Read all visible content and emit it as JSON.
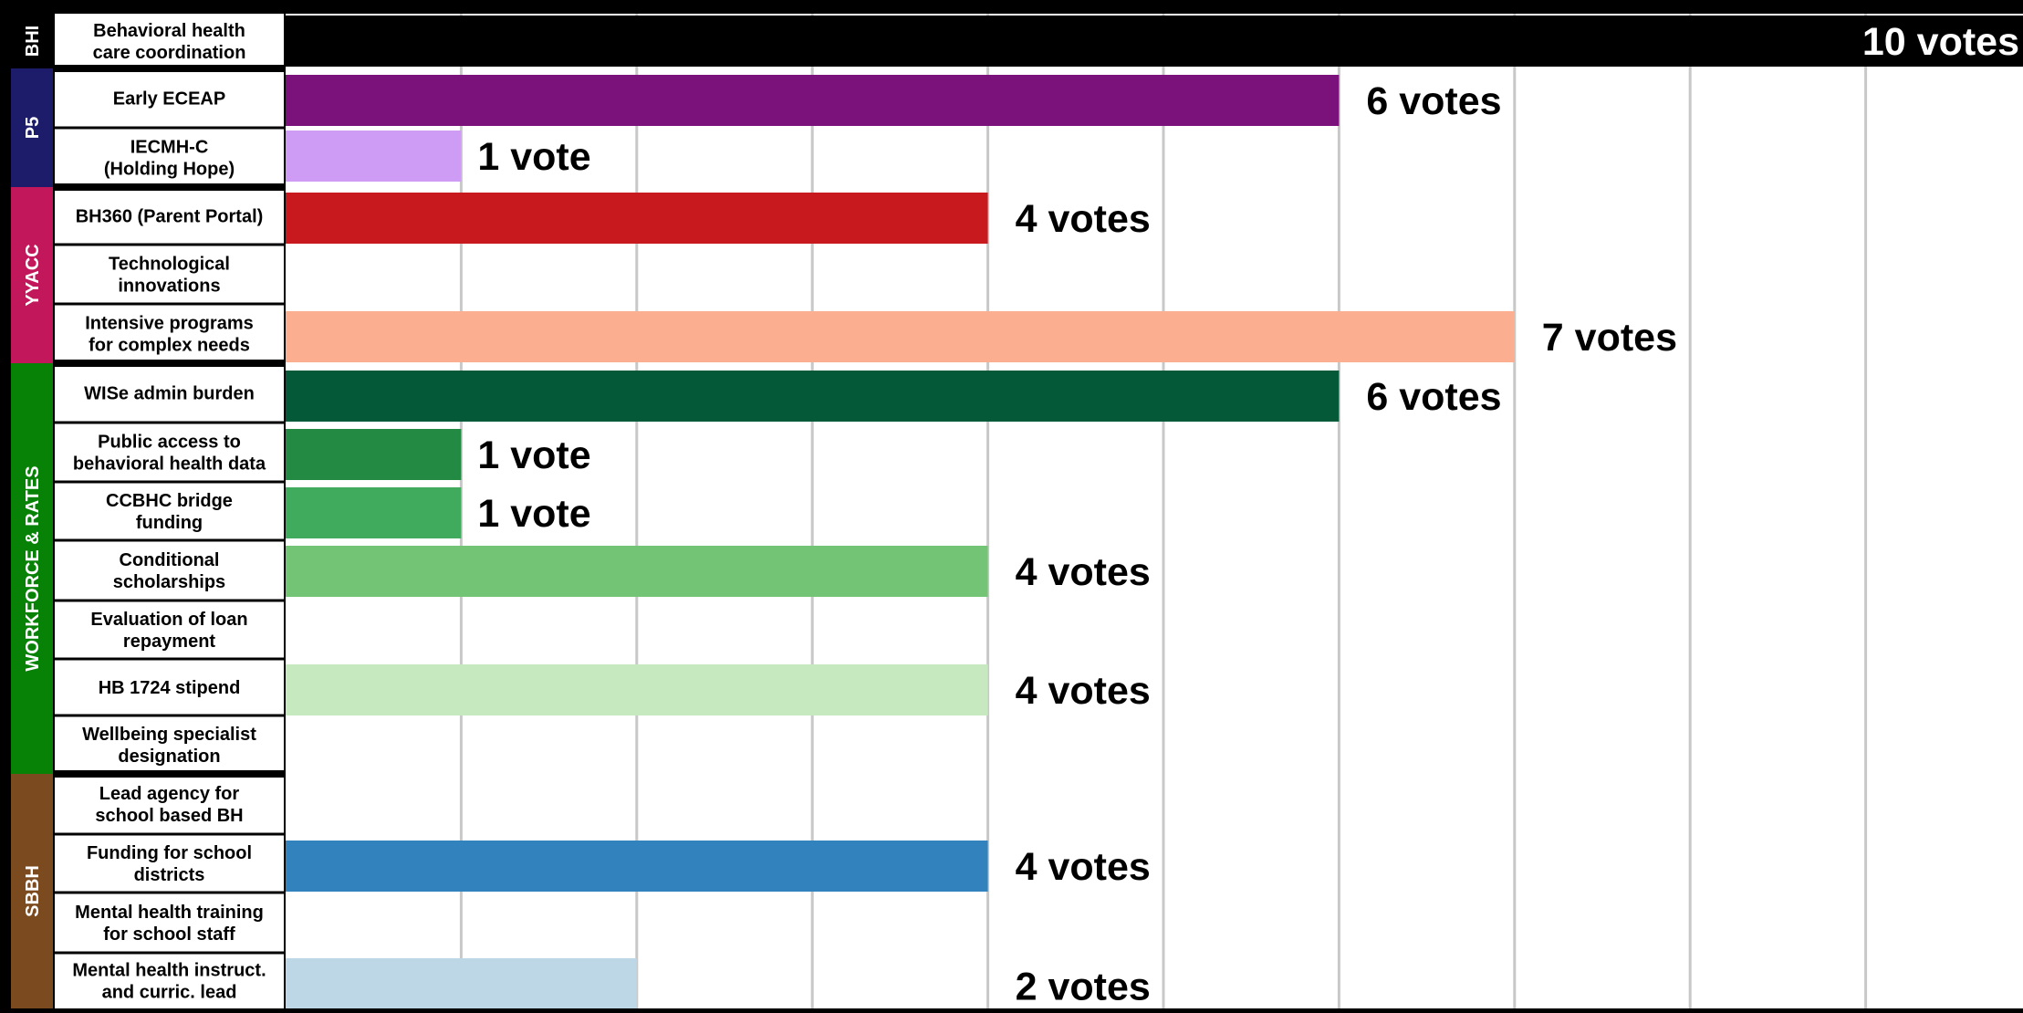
{
  "chart_data": {
    "type": "bar",
    "orientation": "horizontal",
    "xlim": [
      0,
      10
    ],
    "grid": true,
    "groups": [
      {
        "label": "BHI",
        "color": "#000000",
        "start": 0,
        "end": 0
      },
      {
        "label": "P5",
        "color": "#1c1c6b",
        "start": 1,
        "end": 2
      },
      {
        "label": "YYACC",
        "color": "#c2185b",
        "start": 3,
        "end": 5
      },
      {
        "label": "WORKFORCE & RATES",
        "color": "#078207",
        "start": 6,
        "end": 12
      },
      {
        "label": "SBBH",
        "color": "#7b4a1e",
        "start": 13,
        "end": 16
      }
    ],
    "categories": [
      "Behavioral health\ncare coordination",
      "Early ECEAP",
      "IECMH-C\n(Holding Hope)",
      "BH360 (Parent Portal)",
      "Technological\ninnovations",
      "Intensive programs\nfor complex needs",
      "WISe admin burden",
      "Public access to\nbehavioral health data",
      "CCBHC bridge\nfunding",
      "Conditional\nscholarships",
      "Evaluation of loan\nrepayment",
      "HB 1724 stipend",
      "Wellbeing specialist\ndesignation",
      "Lead agency for\nschool based BH",
      "Funding for school\ndistricts",
      "Mental health training\nfor school staff",
      "Mental health instruct.\nand curric. lead"
    ],
    "values": [
      10,
      6,
      1,
      4,
      0,
      7,
      6,
      1,
      1,
      4,
      0,
      4,
      0,
      0,
      4,
      0,
      2
    ],
    "data_labels": [
      "10 votes",
      "6 votes",
      "1 vote",
      "4 votes",
      "",
      "7 votes",
      "6 votes",
      "1 vote",
      "1 vote",
      "4 votes",
      "",
      "4 votes",
      "",
      "",
      "4 votes",
      "",
      "2 votes"
    ],
    "colors": [
      "#000000",
      "#7b117a",
      "#cf9cf5",
      "#c8191f",
      "#ffffff",
      "#fbae90",
      "#045a38",
      "#238a43",
      "#41ab5d",
      "#74c476",
      "#ffffff",
      "#c7e9c0",
      "#ffffff",
      "#ffffff",
      "#3182bd",
      "#ffffff",
      "#bdd7e7"
    ]
  }
}
